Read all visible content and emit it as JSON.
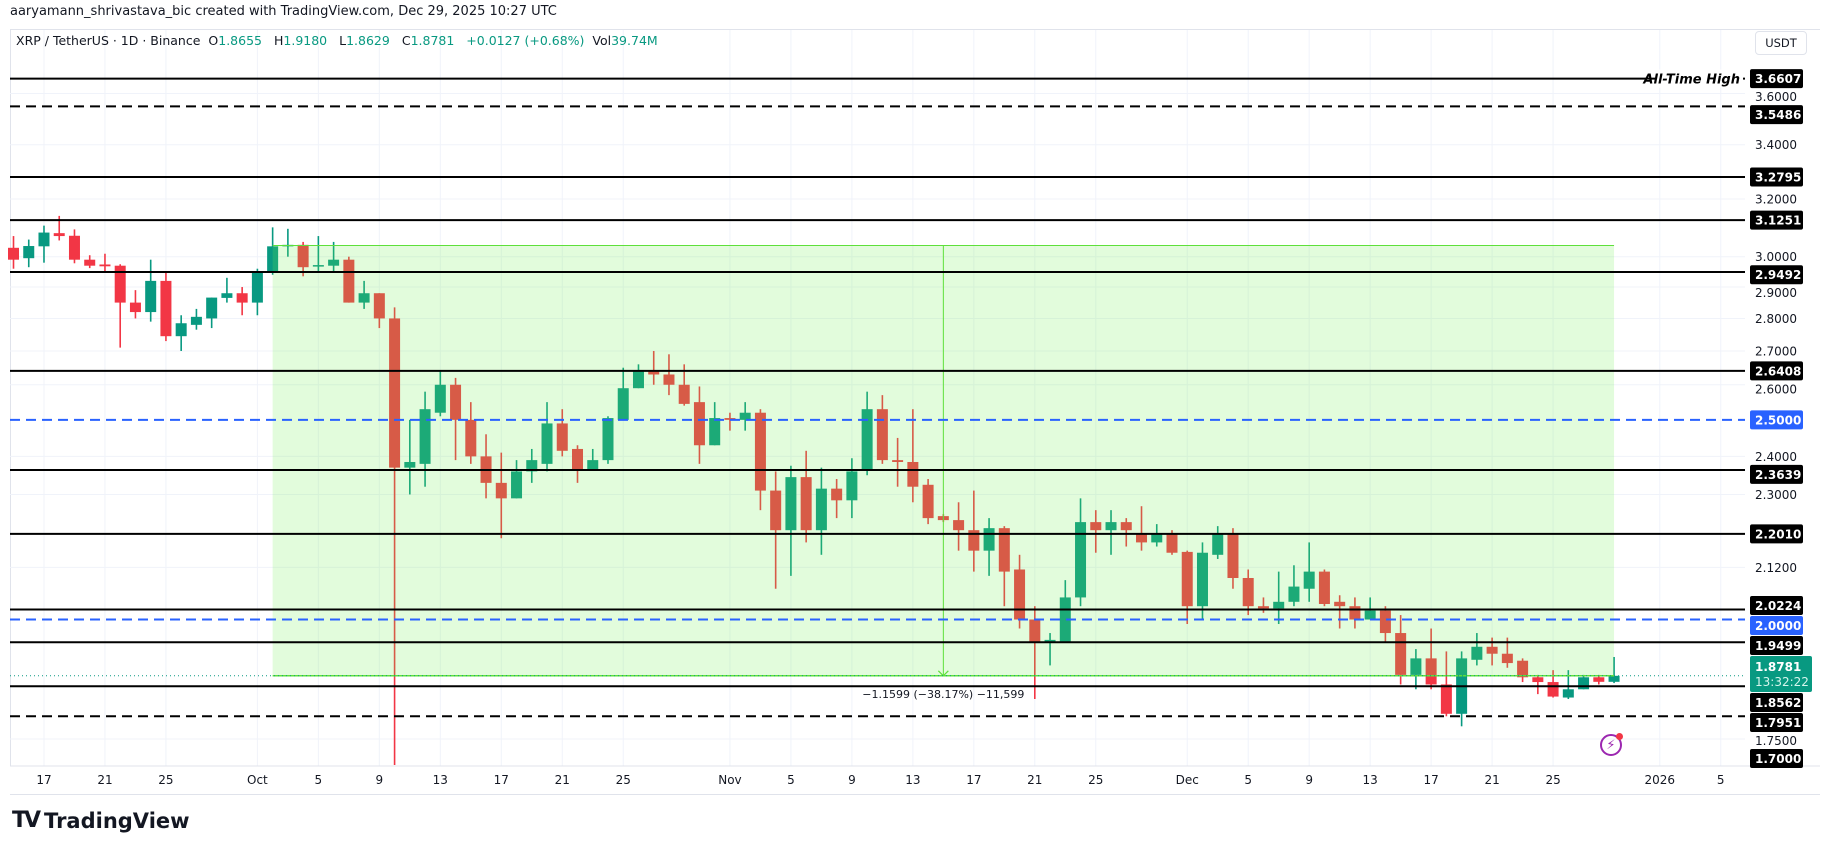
{
  "credit": "aaryamann_shrivastava_bic created with TradingView.com, Dec 29, 2025 10:27 UTC",
  "legend": {
    "symbol": "XRP / TetherUS · 1D · Binance",
    "open_label": "O",
    "open": "1.8655",
    "high_label": "H",
    "high": "1.9180",
    "low_label": "L",
    "low": "1.8629",
    "close_label": "C",
    "close": "1.8781",
    "change": "+0.0127 (+0.68%)",
    "vol_label": "Vol",
    "vol": "39.74M"
  },
  "currency_button": "USDT",
  "footer_logo": "TradingView",
  "footer_logo_mark": "TV",
  "lightning_icon": "lightning-icon",
  "chart_data": {
    "type": "candlestick",
    "y_scale": "log",
    "ylim": [
      1.698,
      3.865
    ],
    "xlim": [
      "2025-09-15",
      "2026-01-06"
    ],
    "grid": true,
    "colors": {
      "up": "#089981",
      "down": "#f23645",
      "zone": "#e2fcdc",
      "zone_border": "#5ee03a",
      "level": "#000000",
      "round_level": "#2962ff",
      "current": "#089981"
    },
    "x_ticks": [
      {
        "date": "2025-09-17",
        "label": "17"
      },
      {
        "date": "2025-09-21",
        "label": "21"
      },
      {
        "date": "2025-09-25",
        "label": "25"
      },
      {
        "date": "2025-10-01",
        "label": "Oct"
      },
      {
        "date": "2025-10-05",
        "label": "5"
      },
      {
        "date": "2025-10-09",
        "label": "9"
      },
      {
        "date": "2025-10-13",
        "label": "13"
      },
      {
        "date": "2025-10-17",
        "label": "17"
      },
      {
        "date": "2025-10-21",
        "label": "21"
      },
      {
        "date": "2025-10-25",
        "label": "25"
      },
      {
        "date": "2025-11-01",
        "label": "Nov"
      },
      {
        "date": "2025-11-05",
        "label": "5"
      },
      {
        "date": "2025-11-09",
        "label": "9"
      },
      {
        "date": "2025-11-13",
        "label": "13"
      },
      {
        "date": "2025-11-17",
        "label": "17"
      },
      {
        "date": "2025-11-21",
        "label": "21"
      },
      {
        "date": "2025-11-25",
        "label": "25"
      },
      {
        "date": "2025-12-01",
        "label": "Dec"
      },
      {
        "date": "2025-12-05",
        "label": "5"
      },
      {
        "date": "2025-12-09",
        "label": "9"
      },
      {
        "date": "2025-12-13",
        "label": "13"
      },
      {
        "date": "2025-12-17",
        "label": "17"
      },
      {
        "date": "2025-12-21",
        "label": "21"
      },
      {
        "date": "2025-12-25",
        "label": "25"
      },
      {
        "date": "2026-01-01",
        "label": "2026"
      },
      {
        "date": "2026-01-05",
        "label": "5"
      }
    ],
    "y_ticks": [
      "3.6000",
      "3.4000",
      "3.2000",
      "3.0000",
      "2.9000",
      "2.8000",
      "2.7000",
      "2.6000",
      "2.4000",
      "2.3000",
      "2.1200",
      "1.7500"
    ],
    "levels": [
      {
        "price": 3.6607,
        "label": "3.6607",
        "style": "solid",
        "color": "#000000",
        "note": "All-Time High"
      },
      {
        "price": 3.5486,
        "label": "3.5486",
        "style": "dashed",
        "color": "#000000"
      },
      {
        "price": 3.2795,
        "label": "3.2795",
        "style": "solid",
        "color": "#000000"
      },
      {
        "price": 3.1251,
        "label": "3.1251",
        "style": "solid",
        "color": "#000000"
      },
      {
        "price": 2.9492,
        "label": "2.9492",
        "style": "solid",
        "color": "#000000"
      },
      {
        "price": 2.6408,
        "label": "2.6408",
        "style": "solid",
        "color": "#000000"
      },
      {
        "price": 2.5,
        "label": "2.5000",
        "style": "dashed",
        "color": "#2962ff"
      },
      {
        "price": 2.3639,
        "label": "2.3639",
        "style": "solid",
        "color": "#000000"
      },
      {
        "price": 2.201,
        "label": "2.2010",
        "style": "solid",
        "color": "#000000"
      },
      {
        "price": 2.0224,
        "label": "2.0224",
        "style": "solid",
        "color": "#000000"
      },
      {
        "price": 2.0,
        "label": "2.0000",
        "style": "dashed",
        "color": "#2962ff"
      },
      {
        "price": 1.9499,
        "label": "1.9499",
        "style": "solid",
        "color": "#000000"
      },
      {
        "price": 1.8562,
        "label": "1.8562",
        "style": "solid",
        "color": "#000000"
      },
      {
        "price": 1.7951,
        "label": "1.7951",
        "style": "dashed",
        "color": "#000000"
      },
      {
        "price": 1.7,
        "label": "1.7000",
        "style": "none",
        "color": "#000000"
      }
    ],
    "current_price": {
      "price": 1.8781,
      "label": "1.8781",
      "countdown": "13:32:22"
    },
    "measure": {
      "start": "2025-10-02",
      "end": "2025-12-29",
      "top": 3.038,
      "bottom": 1.8781,
      "arrow_date": "2025-11-15",
      "label": "−1.1599 (−38.17%) −11,599"
    },
    "candles": [
      [
        "2025-09-15",
        3.03,
        3.07,
        2.96,
        2.99
      ],
      [
        "2025-09-16",
        2.995,
        3.058,
        2.965,
        3.036
      ],
      [
        "2025-09-17",
        3.035,
        3.106,
        2.98,
        3.082
      ],
      [
        "2025-09-18",
        3.08,
        3.14,
        3.055,
        3.07
      ],
      [
        "2025-09-19",
        3.071,
        3.093,
        2.978,
        2.99
      ],
      [
        "2025-09-20",
        2.99,
        3.005,
        2.962,
        2.97
      ],
      [
        "2025-09-21",
        2.974,
        3.01,
        2.95,
        2.968
      ],
      [
        "2025-09-22",
        2.97,
        2.975,
        2.71,
        2.85
      ],
      [
        "2025-09-23",
        2.85,
        2.89,
        2.8,
        2.82
      ],
      [
        "2025-09-24",
        2.82,
        2.99,
        2.79,
        2.92
      ],
      [
        "2025-09-25",
        2.92,
        2.95,
        2.73,
        2.745
      ],
      [
        "2025-09-26",
        2.745,
        2.81,
        2.7,
        2.785
      ],
      [
        "2025-09-27",
        2.78,
        2.83,
        2.765,
        2.805
      ],
      [
        "2025-09-28",
        2.8,
        2.866,
        2.77,
        2.866
      ],
      [
        "2025-09-29",
        2.865,
        2.93,
        2.85,
        2.88
      ],
      [
        "2025-09-30",
        2.88,
        2.9,
        2.81,
        2.85
      ],
      [
        "2025-10-01",
        2.85,
        2.96,
        2.81,
        2.95
      ],
      [
        "2025-10-02",
        2.95,
        3.1,
        2.94,
        3.035
      ],
      [
        "2025-10-03",
        3.035,
        3.095,
        3.0,
        3.04
      ],
      [
        "2025-10-04",
        3.04,
        3.05,
        2.935,
        2.965
      ],
      [
        "2025-10-05",
        2.97,
        3.07,
        2.95,
        2.972
      ],
      [
        "2025-10-06",
        2.97,
        3.05,
        2.95,
        2.99
      ],
      [
        "2025-10-07",
        2.99,
        3.0,
        2.85,
        2.85
      ],
      [
        "2025-10-08",
        2.85,
        2.92,
        2.83,
        2.88
      ],
      [
        "2025-10-09",
        2.88,
        2.88,
        2.77,
        2.8
      ],
      [
        "2025-10-10",
        2.8,
        2.835,
        1.7,
        2.37
      ],
      [
        "2025-10-11",
        2.37,
        2.5,
        2.3,
        2.385
      ],
      [
        "2025-10-12",
        2.38,
        2.58,
        2.32,
        2.53
      ],
      [
        "2025-10-13",
        2.52,
        2.64,
        2.51,
        2.6
      ],
      [
        "2025-10-14",
        2.6,
        2.62,
        2.39,
        2.5
      ],
      [
        "2025-10-15",
        2.5,
        2.55,
        2.38,
        2.4
      ],
      [
        "2025-10-16",
        2.4,
        2.46,
        2.29,
        2.33
      ],
      [
        "2025-10-17",
        2.33,
        2.41,
        2.19,
        2.29
      ],
      [
        "2025-10-18",
        2.29,
        2.39,
        2.29,
        2.36
      ],
      [
        "2025-10-19",
        2.36,
        2.42,
        2.33,
        2.39
      ],
      [
        "2025-10-20",
        2.38,
        2.55,
        2.36,
        2.49
      ],
      [
        "2025-10-21",
        2.49,
        2.53,
        2.4,
        2.415
      ],
      [
        "2025-10-22",
        2.42,
        2.43,
        2.33,
        2.365
      ],
      [
        "2025-10-23",
        2.365,
        2.42,
        2.365,
        2.39
      ],
      [
        "2025-10-24",
        2.39,
        2.51,
        2.38,
        2.505
      ],
      [
        "2025-10-25",
        2.5,
        2.65,
        2.5,
        2.59
      ],
      [
        "2025-10-26",
        2.59,
        2.66,
        2.59,
        2.64
      ],
      [
        "2025-10-27",
        2.64,
        2.7,
        2.6,
        2.63
      ],
      [
        "2025-10-28",
        2.63,
        2.69,
        2.57,
        2.6
      ],
      [
        "2025-10-29",
        2.6,
        2.66,
        2.54,
        2.545
      ],
      [
        "2025-10-30",
        2.55,
        2.595,
        2.38,
        2.43
      ],
      [
        "2025-10-31",
        2.43,
        2.55,
        2.43,
        2.505
      ],
      [
        "2025-11-01",
        2.505,
        2.52,
        2.47,
        2.5
      ],
      [
        "2025-11-02",
        2.5,
        2.55,
        2.47,
        2.52
      ],
      [
        "2025-11-03",
        2.52,
        2.53,
        2.26,
        2.31
      ],
      [
        "2025-11-04",
        2.31,
        2.36,
        2.07,
        2.21
      ],
      [
        "2025-11-05",
        2.21,
        2.375,
        2.1,
        2.345
      ],
      [
        "2025-11-06",
        2.345,
        2.415,
        2.18,
        2.21
      ],
      [
        "2025-11-07",
        2.21,
        2.37,
        2.15,
        2.315
      ],
      [
        "2025-11-08",
        2.315,
        2.34,
        2.24,
        2.285
      ],
      [
        "2025-11-09",
        2.285,
        2.395,
        2.24,
        2.36
      ],
      [
        "2025-11-10",
        2.365,
        2.58,
        2.35,
        2.53
      ],
      [
        "2025-11-11",
        2.53,
        2.57,
        2.38,
        2.39
      ],
      [
        "2025-11-12",
        2.39,
        2.45,
        2.32,
        2.385
      ],
      [
        "2025-11-13",
        2.385,
        2.53,
        2.28,
        2.32
      ],
      [
        "2025-11-14",
        2.325,
        2.34,
        2.225,
        2.24
      ],
      [
        "2025-11-15",
        2.245,
        2.25,
        2.23,
        2.235
      ],
      [
        "2025-11-16",
        2.235,
        2.28,
        2.16,
        2.21
      ],
      [
        "2025-11-17",
        2.21,
        2.31,
        2.11,
        2.16
      ],
      [
        "2025-11-18",
        2.16,
        2.24,
        2.1,
        2.215
      ],
      [
        "2025-11-19",
        2.215,
        2.22,
        2.03,
        2.11
      ],
      [
        "2025-11-20",
        2.115,
        2.15,
        1.98,
        2.0
      ],
      [
        "2025-11-21",
        2.0,
        2.03,
        1.83,
        1.95
      ],
      [
        "2025-11-22",
        1.95,
        1.97,
        1.9,
        1.955
      ],
      [
        "2025-11-23",
        1.95,
        2.09,
        1.95,
        2.05
      ],
      [
        "2025-11-24",
        2.05,
        2.29,
        2.03,
        2.23
      ],
      [
        "2025-11-25",
        2.23,
        2.26,
        2.155,
        2.21
      ],
      [
        "2025-11-26",
        2.21,
        2.26,
        2.15,
        2.23
      ],
      [
        "2025-11-27",
        2.23,
        2.24,
        2.17,
        2.21
      ],
      [
        "2025-11-28",
        2.2,
        2.27,
        2.16,
        2.18
      ],
      [
        "2025-11-29",
        2.18,
        2.225,
        2.17,
        2.2
      ],
      [
        "2025-11-30",
        2.2,
        2.21,
        2.15,
        2.155
      ],
      [
        "2025-12-01",
        2.157,
        2.16,
        1.99,
        2.03
      ],
      [
        "2025-12-02",
        2.03,
        2.18,
        2.0,
        2.155
      ],
      [
        "2025-12-03",
        2.15,
        2.22,
        2.14,
        2.2
      ],
      [
        "2025-12-04",
        2.2,
        2.215,
        2.07,
        2.095
      ],
      [
        "2025-12-05",
        2.095,
        2.115,
        2.01,
        2.03
      ],
      [
        "2025-12-06",
        2.03,
        2.05,
        2.015,
        2.025
      ],
      [
        "2025-12-07",
        2.025,
        2.11,
        1.99,
        2.04
      ],
      [
        "2025-12-08",
        2.04,
        2.125,
        2.03,
        2.075
      ],
      [
        "2025-12-09",
        2.07,
        2.18,
        2.04,
        2.11
      ],
      [
        "2025-12-10",
        2.11,
        2.115,
        2.03,
        2.035
      ],
      [
        "2025-12-11",
        2.04,
        2.055,
        1.98,
        2.03
      ],
      [
        "2025-12-12",
        2.03,
        2.05,
        1.98,
        2.0
      ],
      [
        "2025-12-13",
        2.0,
        2.05,
        2.0,
        2.02
      ],
      [
        "2025-12-14",
        2.02,
        2.03,
        1.95,
        1.97
      ],
      [
        "2025-12-15",
        1.97,
        2.01,
        1.86,
        1.88
      ],
      [
        "2025-12-16",
        1.88,
        1.935,
        1.85,
        1.915
      ],
      [
        "2025-12-17",
        1.915,
        1.98,
        1.85,
        1.86
      ],
      [
        "2025-12-18",
        1.86,
        1.93,
        1.795,
        1.8
      ],
      [
        "2025-12-19",
        1.8,
        1.93,
        1.775,
        1.915
      ],
      [
        "2025-12-20",
        1.912,
        1.97,
        1.9,
        1.94
      ],
      [
        "2025-12-21",
        1.94,
        1.96,
        1.9,
        1.925
      ],
      [
        "2025-12-22",
        1.925,
        1.96,
        1.895,
        1.905
      ],
      [
        "2025-12-23",
        1.91,
        1.915,
        1.865,
        1.875
      ],
      [
        "2025-12-24",
        1.875,
        1.88,
        1.84,
        1.865
      ],
      [
        "2025-12-25",
        1.865,
        1.89,
        1.833,
        1.835
      ],
      [
        "2025-12-26",
        1.833,
        1.89,
        1.83,
        1.85
      ],
      [
        "2025-12-27",
        1.85,
        1.88,
        1.85,
        1.875
      ],
      [
        "2025-12-28",
        1.875,
        1.88,
        1.86,
        1.8655
      ],
      [
        "2025-12-29",
        1.8655,
        1.918,
        1.8629,
        1.8781
      ]
    ]
  }
}
